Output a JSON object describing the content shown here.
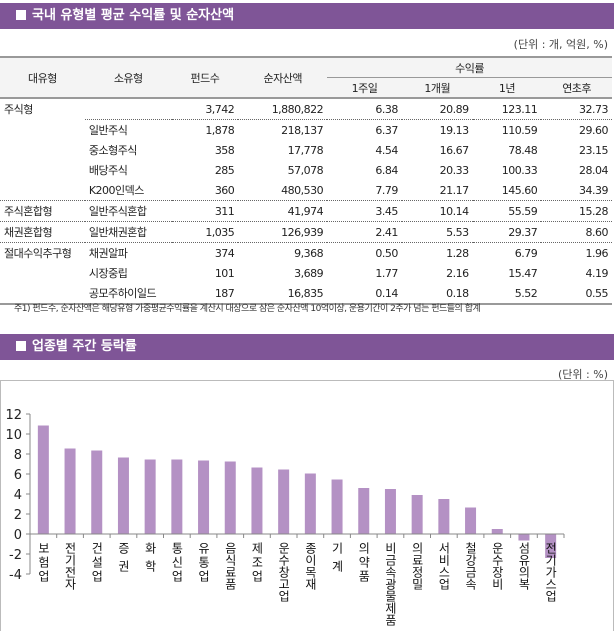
{
  "section1": {
    "title": "국내 유형별 평균 수익률 및 순자산액",
    "unit": "(단위 : 개, 억원, %)",
    "headers": {
      "major": "대유형",
      "minor": "소유형",
      "funds": "펀드수",
      "nav": "순자산액",
      "return": "수익률",
      "w1": "1주일",
      "m1": "1개월",
      "y1": "1년",
      "ytd": "연초후"
    },
    "rows": [
      {
        "major": "주식형",
        "minor": "",
        "funds": "3,742",
        "nav": "1,880,822",
        "w1": "6.38",
        "m1": "20.89",
        "y1": "123.11",
        "ytd": "32.73"
      },
      {
        "major": "",
        "minor": "일반주식",
        "funds": "1,878",
        "nav": "218,137",
        "w1": "6.37",
        "m1": "19.13",
        "y1": "110.59",
        "ytd": "29.60"
      },
      {
        "major": "",
        "minor": "중소형주식",
        "funds": "358",
        "nav": "17,778",
        "w1": "4.54",
        "m1": "16.67",
        "y1": "78.48",
        "ytd": "23.15"
      },
      {
        "major": "",
        "minor": "배당주식",
        "funds": "285",
        "nav": "57,078",
        "w1": "6.84",
        "m1": "20.33",
        "y1": "100.33",
        "ytd": "28.04"
      },
      {
        "major": "",
        "minor": "K200인덱스",
        "funds": "360",
        "nav": "480,530",
        "w1": "7.79",
        "m1": "21.17",
        "y1": "145.60",
        "ytd": "34.39"
      },
      {
        "major": "주식혼합형",
        "minor": "일반주식혼합",
        "funds": "311",
        "nav": "41,974",
        "w1": "3.45",
        "m1": "10.14",
        "y1": "55.59",
        "ytd": "15.28"
      },
      {
        "major": "채권혼합형",
        "minor": "일반채권혼합",
        "funds": "1,035",
        "nav": "126,939",
        "w1": "2.41",
        "m1": "5.53",
        "y1": "29.37",
        "ytd": "8.60"
      },
      {
        "major": "절대수익추구형",
        "minor": "채권알파",
        "funds": "374",
        "nav": "9,368",
        "w1": "0.50",
        "m1": "1.28",
        "y1": "6.79",
        "ytd": "1.96"
      },
      {
        "major": "",
        "minor": "시장중립",
        "funds": "101",
        "nav": "3,689",
        "w1": "1.77",
        "m1": "2.16",
        "y1": "15.47",
        "ytd": "4.19"
      },
      {
        "major": "",
        "minor": "공모주하이일드",
        "funds": "187",
        "nav": "16,835",
        "w1": "0.14",
        "m1": "0.18",
        "y1": "5.52",
        "ytd": "0.55"
      }
    ],
    "note": "주1) 펀드수, 순자산액은 해당유형 가중평균수익률을 계산시 대상으로 삼은 순자산액 10억이상, 운용기간이 2주가 넘는 펀드들의 합계"
  },
  "section2": {
    "title": "업종별 주간 등락률",
    "unit": "(단위 : %)"
  },
  "chart_data": {
    "type": "bar",
    "categories": [
      "보험업",
      "전기전자",
      "건설업",
      "증권",
      "화학",
      "통신업",
      "유통업",
      "음식료품",
      "제조업",
      "운수창고업",
      "종이목재",
      "기계",
      "의약품",
      "비금속광물제품",
      "의료정밀",
      "서비스업",
      "철강금속",
      "운수장비",
      "섬유의복",
      "전기가스업"
    ],
    "values": [
      10.85,
      8.55,
      8.35,
      7.65,
      7.45,
      7.45,
      7.35,
      7.25,
      6.65,
      6.45,
      6.05,
      5.45,
      4.6,
      4.5,
      3.9,
      3.5,
      2.65,
      0.5,
      -0.65,
      -2.4
    ],
    "ylim": [
      -4,
      12
    ],
    "yticks": [
      "-4",
      "-2",
      "0",
      "2",
      "4",
      "6",
      "8",
      "10",
      "12"
    ],
    "bar_color": "#b491c4",
    "grid": false
  }
}
